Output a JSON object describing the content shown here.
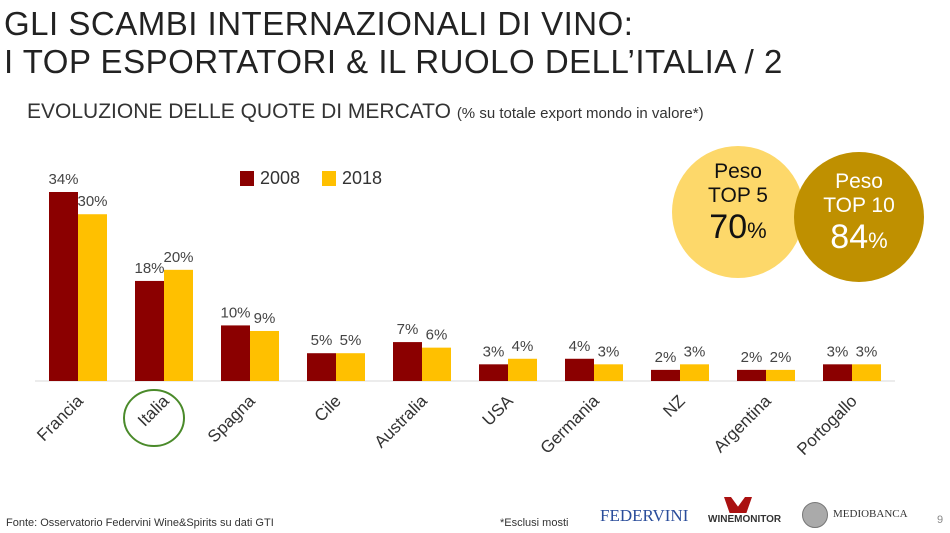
{
  "header": {
    "title_line1": "GLI SCAMBI INTERNAZIONALI DI VINO:",
    "title_line2": "I TOP ESPORTATORI & IL RUOLO DELL’ITALIA / 2"
  },
  "chart_data": {
    "type": "bar",
    "title": "EVOLUZIONE DELLE QUOTE DI MERCATO",
    "subtitle": "(% su totale export mondo in valore*)",
    "categories": [
      "Francia",
      "Italia",
      "Spagna",
      "Cile",
      "Australia",
      "USA",
      "Germania",
      "NZ",
      "Argentina",
      "Portogallo"
    ],
    "series": [
      {
        "name": "2008",
        "color": "#8b0000",
        "values": [
          34,
          18,
          10,
          5,
          7,
          3,
          4,
          2,
          2,
          3
        ]
      },
      {
        "name": "2018",
        "color": "#ffc000",
        "values": [
          30,
          20,
          9,
          5,
          6,
          4,
          3,
          3,
          2,
          3
        ]
      }
    ],
    "highlighted_category": "Italia",
    "ylim": [
      0,
      34
    ],
    "legend": "top-center"
  },
  "callouts": [
    {
      "line1": "Peso",
      "line2": "TOP 5",
      "value": "70",
      "unit": "%",
      "color": "#fdd86a"
    },
    {
      "line1": "Peso",
      "line2": "TOP 10",
      "value": "84",
      "unit": "%",
      "color": "#bf9000"
    }
  ],
  "footer": {
    "source": "Fonte: Osservatorio Federvini Wine&Spirits su dati GTI",
    "note": "*Esclusi mosti",
    "page": "9",
    "logos": [
      "FEDERVINI",
      "WINEMONITOR",
      "MEDIOBANCA"
    ]
  }
}
